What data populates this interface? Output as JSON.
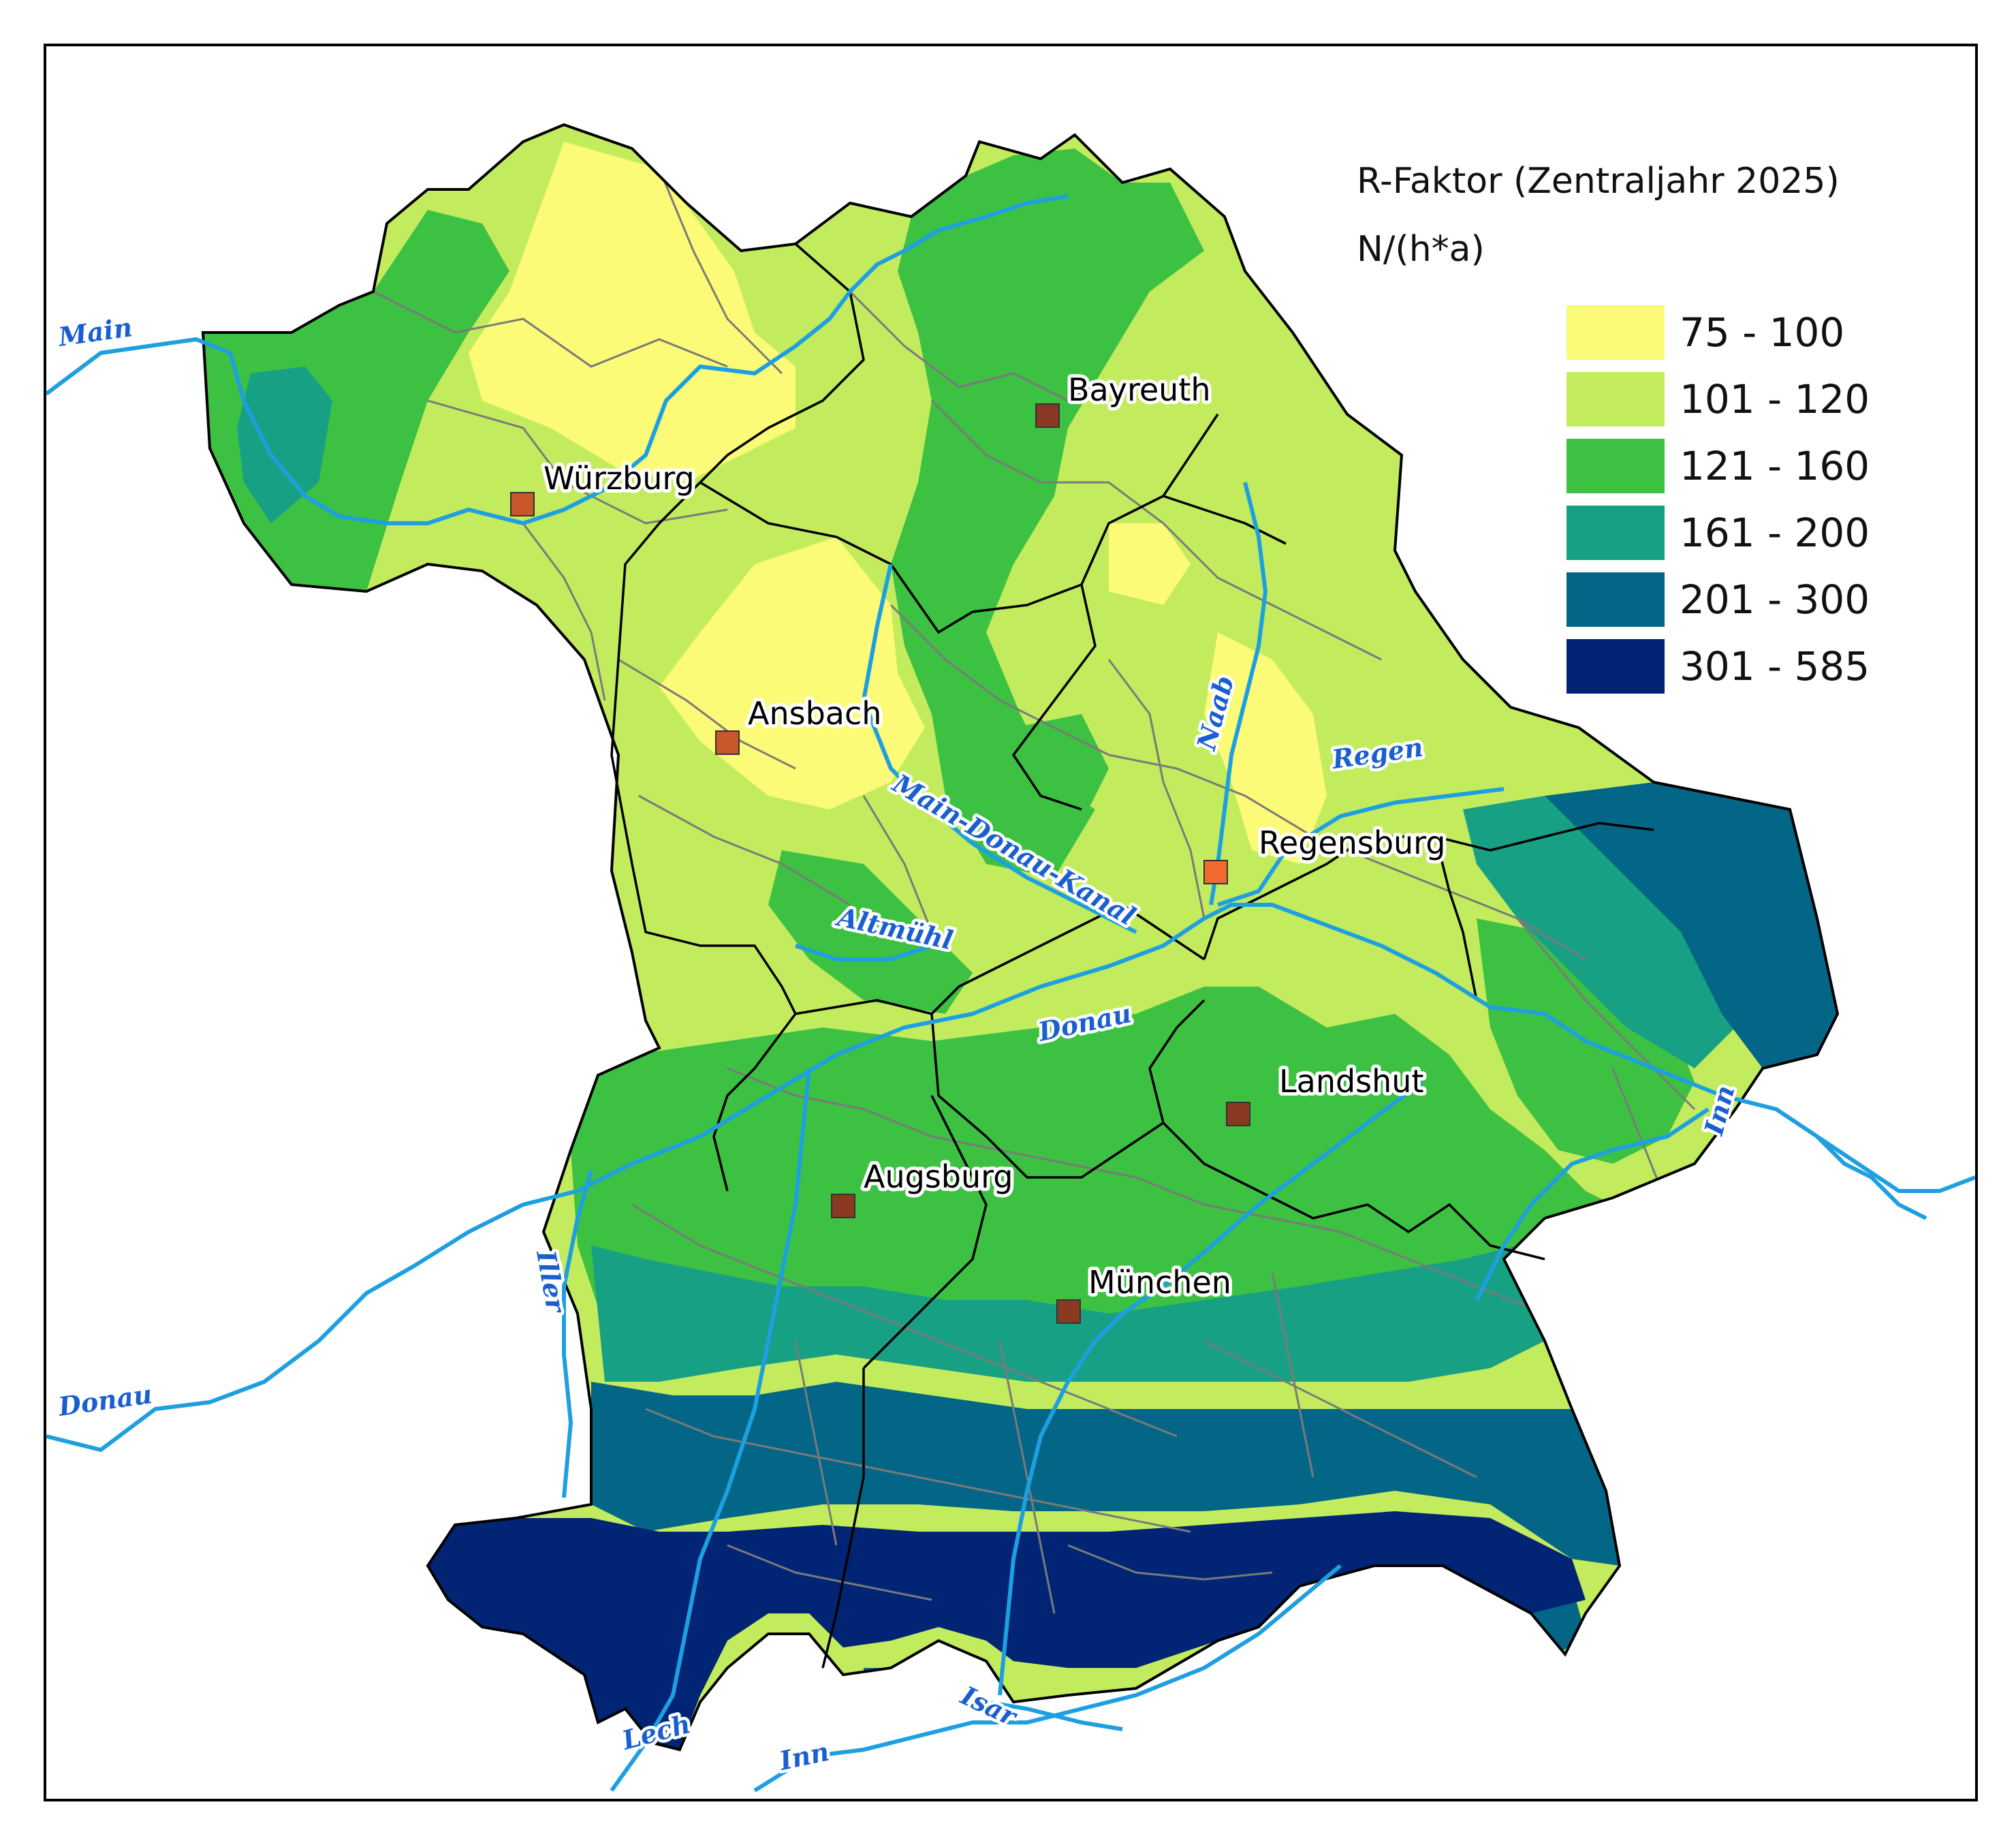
{
  "legend": {
    "title": "R-Faktor (Zentraljahr 2025)",
    "unit": "N/(h*a)",
    "classes": [
      {
        "label": "75 - 100",
        "color": "#fbfb78"
      },
      {
        "label": "101 - 120",
        "color": "#c2eb5e"
      },
      {
        "label": "121 - 160",
        "color": "#3dc142"
      },
      {
        "label": "161 - 200",
        "color": "#18a085"
      },
      {
        "label": "201 - 300",
        "color": "#046686"
      },
      {
        "label": "301 - 585",
        "color": "#012574"
      }
    ]
  },
  "cities": [
    {
      "name": "Würzburg"
    },
    {
      "name": "Bayreuth"
    },
    {
      "name": "Ansbach"
    },
    {
      "name": "Regensburg"
    },
    {
      "name": "Landshut"
    },
    {
      "name": "Augsburg"
    },
    {
      "name": "München"
    }
  ],
  "rivers": [
    {
      "name": "Main"
    },
    {
      "name": "Naab"
    },
    {
      "name": "Regen"
    },
    {
      "name": "Main-Donau-Kanal"
    },
    {
      "name": "Altmühl"
    },
    {
      "name": "Donau"
    },
    {
      "name": "Inn"
    },
    {
      "name": "Iller"
    },
    {
      "name": "Donau"
    },
    {
      "name": "Lech"
    },
    {
      "name": "Inn"
    },
    {
      "name": "Isar"
    }
  ],
  "colors": {
    "river": "#1e9fe0",
    "city_marker": "#c8582a",
    "admin_border": "#7a7a7a",
    "district_border": "#000000"
  }
}
